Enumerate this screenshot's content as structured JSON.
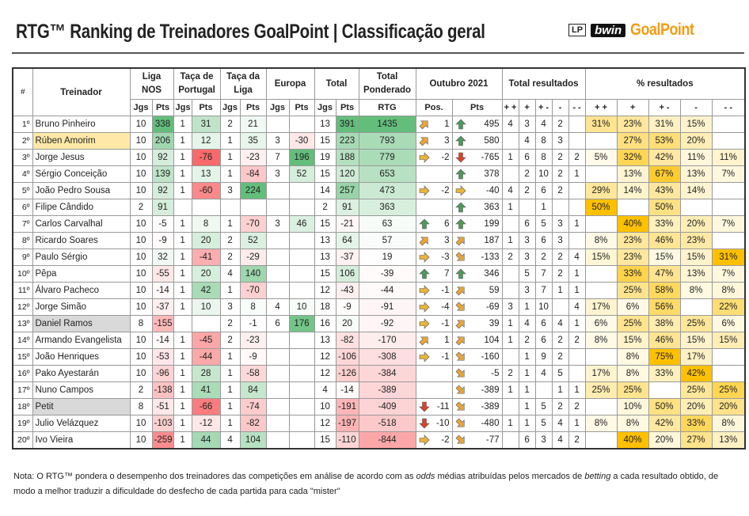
{
  "header": {
    "title": "RTG™ Ranking de Treinadores GoalPoint | Classificação geral",
    "logos": [
      "LP",
      "bwin",
      "GoalPoint"
    ]
  },
  "table": {
    "head": {
      "rank": "#",
      "coach": "Treinador",
      "groups": [
        "Liga NOS",
        "Taça de Portugal",
        "Taça da Liga",
        "Europa",
        "Total",
        "Total Ponderado",
        "Outubro 2021",
        "Total resultados",
        "% resultados"
      ],
      "sub": [
        "Jgs",
        "Pts",
        "Jgs",
        "Pts",
        "Jgs",
        "Pts",
        "Jgs",
        "Pts",
        "Jgs",
        "Pts",
        "RTG",
        "Pos.",
        "Pts",
        "+ +",
        "+",
        "+ -",
        "-",
        "- -",
        "+ +",
        "+",
        "+ -",
        "-",
        "- -"
      ]
    },
    "rows": [
      {
        "cells": [
          "1º",
          "Bruno Pinheiro",
          10,
          338,
          1,
          31,
          2,
          21,
          null,
          null,
          13,
          391,
          1435,
          1,
          495,
          4,
          3,
          4,
          2,
          null,
          "31%",
          "23%",
          "31%",
          "15%",
          null
        ],
        "pos_arrow": "up-right",
        "pts_arrow": "up"
      },
      {
        "cells": [
          "2º",
          "Rúben Amorim",
          10,
          206,
          1,
          12,
          1,
          35,
          3,
          -30,
          15,
          223,
          793,
          3,
          580,
          null,
          4,
          8,
          3,
          null,
          null,
          "27%",
          "53%",
          "20%",
          null
        ],
        "pos_arrow": "up-right",
        "pts_arrow": "up",
        "highlight": "yellow"
      },
      {
        "cells": [
          "3º",
          "Jorge Jesus",
          10,
          92,
          1,
          -76,
          1,
          -23,
          7,
          196,
          19,
          188,
          779,
          -2,
          -765,
          1,
          6,
          8,
          2,
          2,
          "5%",
          "32%",
          "42%",
          "11%",
          "11%"
        ],
        "pos_arrow": "right",
        "pts_arrow": "down"
      },
      {
        "cells": [
          "4º",
          "Sérgio Conceição",
          10,
          139,
          1,
          13,
          1,
          -84,
          3,
          52,
          15,
          120,
          653,
          null,
          378,
          null,
          2,
          10,
          2,
          1,
          null,
          "13%",
          "67%",
          "13%",
          "7%"
        ],
        "pts_arrow": "up"
      },
      {
        "cells": [
          "5º",
          "João Pedro Sousa",
          10,
          92,
          1,
          -60,
          3,
          224,
          null,
          null,
          14,
          257,
          473,
          -2,
          -40,
          4,
          2,
          6,
          2,
          null,
          "29%",
          "14%",
          "43%",
          "14%",
          null
        ],
        "pos_arrow": "right",
        "pts_arrow": "right"
      },
      {
        "cells": [
          "6º",
          "Filipe Cândido",
          2,
          91,
          null,
          null,
          null,
          null,
          null,
          null,
          2,
          91,
          363,
          null,
          363,
          1,
          null,
          1,
          null,
          null,
          "50%",
          null,
          "50%",
          null,
          null
        ],
        "pts_arrow": "up"
      },
      {
        "cells": [
          "7º",
          "Carlos Carvalhal",
          10,
          -5,
          1,
          8,
          1,
          -70,
          3,
          46,
          15,
          -21,
          63,
          6,
          199,
          null,
          6,
          5,
          3,
          1,
          null,
          "40%",
          "33%",
          "20%",
          "7%"
        ],
        "pos_arrow": "up",
        "pts_arrow": "up"
      },
      {
        "cells": [
          "8º",
          "Ricardo Soares",
          10,
          -9,
          1,
          20,
          2,
          52,
          null,
          null,
          13,
          64,
          57,
          3,
          187,
          1,
          3,
          6,
          3,
          null,
          "8%",
          "23%",
          "46%",
          "23%",
          null
        ],
        "pos_arrow": "up-right",
        "pts_arrow": "up-right"
      },
      {
        "cells": [
          "9º",
          "Paulo Sérgio",
          10,
          32,
          1,
          -41,
          2,
          -29,
          null,
          null,
          13,
          -37,
          19,
          -3,
          -133,
          2,
          3,
          2,
          2,
          4,
          "15%",
          "23%",
          "15%",
          "15%",
          "31%"
        ],
        "pos_arrow": "right",
        "pts_arrow": "down-right"
      },
      {
        "cells": [
          "10º",
          "Pêpa",
          10,
          -55,
          1,
          20,
          4,
          140,
          null,
          null,
          15,
          106,
          -39,
          7,
          346,
          null,
          5,
          7,
          2,
          1,
          null,
          "33%",
          "47%",
          "13%",
          "7%"
        ],
        "pos_arrow": "up",
        "pts_arrow": "up"
      },
      {
        "cells": [
          "11º",
          "Álvaro Pacheco",
          10,
          -14,
          1,
          42,
          1,
          -70,
          null,
          null,
          12,
          -43,
          -44,
          -1,
          59,
          null,
          3,
          7,
          1,
          1,
          null,
          "25%",
          "58%",
          "8%",
          "8%"
        ],
        "pos_arrow": "right",
        "pts_arrow": "up-right"
      },
      {
        "cells": [
          "12º",
          "Jorge Simão",
          10,
          -37,
          1,
          10,
          3,
          8,
          4,
          10,
          18,
          -9,
          -91,
          -4,
          -69,
          3,
          1,
          10,
          null,
          4,
          "17%",
          "6%",
          "56%",
          null,
          "22%"
        ],
        "pos_arrow": "right",
        "pts_arrow": "down-right"
      },
      {
        "cells": [
          "13º",
          "Daniel Ramos",
          8,
          -155,
          null,
          null,
          2,
          -1,
          6,
          176,
          16,
          20,
          -92,
          -1,
          39,
          1,
          4,
          6,
          4,
          1,
          "6%",
          "25%",
          "38%",
          "25%",
          "6%"
        ],
        "pos_arrow": "right",
        "pts_arrow": "up-right",
        "highlight": "grey"
      },
      {
        "cells": [
          "14º",
          "Armando Evangelista",
          10,
          -14,
          1,
          -45,
          2,
          -23,
          null,
          null,
          13,
          -82,
          -170,
          1,
          104,
          1,
          2,
          6,
          2,
          2,
          "8%",
          "15%",
          "46%",
          "15%",
          "15%"
        ],
        "pos_arrow": "up-right",
        "pts_arrow": "up-right"
      },
      {
        "cells": [
          "15º",
          "João Henriques",
          10,
          -53,
          1,
          -44,
          1,
          -9,
          null,
          null,
          12,
          -106,
          -308,
          -1,
          -160,
          null,
          1,
          9,
          2,
          null,
          null,
          "8%",
          "75%",
          "17%",
          null
        ],
        "pos_arrow": "right",
        "pts_arrow": "down-right"
      },
      {
        "cells": [
          "16º",
          "Pako Ayestarán",
          10,
          -96,
          1,
          28,
          1,
          -58,
          null,
          null,
          12,
          -126,
          -384,
          null,
          -5,
          2,
          1,
          4,
          5,
          null,
          "17%",
          "8%",
          "33%",
          "42%",
          null
        ],
        "pts_arrow": "down-right"
      },
      {
        "cells": [
          "17º",
          "Nuno Campos",
          2,
          -138,
          1,
          41,
          1,
          84,
          null,
          null,
          4,
          -14,
          -389,
          null,
          -389,
          1,
          1,
          null,
          1,
          1,
          "25%",
          "25%",
          null,
          "25%",
          "25%"
        ],
        "pts_arrow": "down-right"
      },
      {
        "cells": [
          "18º",
          "Petit",
          8,
          -51,
          1,
          -66,
          1,
          -74,
          null,
          null,
          10,
          -191,
          -409,
          -11,
          -389,
          null,
          1,
          5,
          2,
          2,
          null,
          "10%",
          "50%",
          "20%",
          "20%"
        ],
        "pos_arrow": "down",
        "pts_arrow": "down-right",
        "highlight": "grey"
      },
      {
        "cells": [
          "19º",
          "Julio Velázquez",
          10,
          -103,
          1,
          -12,
          1,
          -82,
          null,
          null,
          12,
          -197,
          -518,
          -10,
          -480,
          1,
          1,
          5,
          4,
          1,
          "8%",
          "8%",
          "42%",
          "33%",
          "8%"
        ],
        "pos_arrow": "down",
        "pts_arrow": "down-right"
      },
      {
        "cells": [
          "20º",
          "Ivo Vieira",
          10,
          -259,
          1,
          44,
          4,
          104,
          null,
          null,
          15,
          -110,
          -844,
          -2,
          -77,
          null,
          6,
          3,
          4,
          2,
          null,
          "40%",
          "20%",
          "27%",
          "13%"
        ],
        "pos_arrow": "right",
        "pts_arrow": "down-right"
      }
    ]
  },
  "note": {
    "parts": [
      "Nota: O RTG™ pondera o desempenho dos treinadores das competições em análise de acordo com as ",
      "odds",
      " médias atribuídas pelos mercados de ",
      "betting",
      " a cada resultado obtido, de modo a melhor traduzir a dificuldade do desfecho de cada partida para cada \"mister\""
    ]
  }
}
